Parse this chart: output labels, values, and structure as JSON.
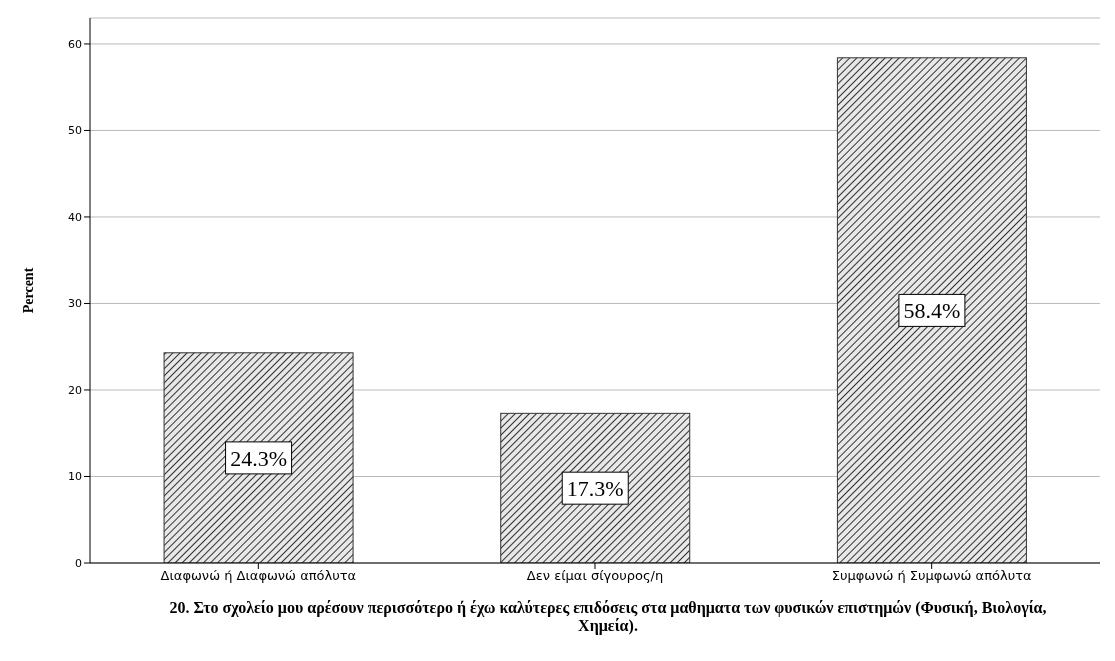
{
  "chart_data": {
    "type": "bar",
    "xlabel": "20. Στο σχολείο μου αρέσουν περισσότερο ή έχω καλύτερες επιδόσεις στα μαθηματα των φυσικών επιστημών (Φυσική, Βιολογία, Χημεία).",
    "ylabel": "Percent",
    "categories": [
      "Διαφωνώ ή Διαφωνώ απόλυτα",
      "Δεν είμαι σίγουρος/η",
      "Συμφωνώ ή Συμφωνώ απόλυτα"
    ],
    "values": [
      24.3,
      17.3,
      58.4
    ],
    "value_labels": [
      "24.3%",
      "17.3%",
      "58.4%"
    ],
    "color": "#333333",
    "ylim": [
      0,
      63
    ],
    "yticks": [
      0,
      10,
      20,
      30,
      40,
      50,
      60
    ],
    "grid": "y"
  }
}
